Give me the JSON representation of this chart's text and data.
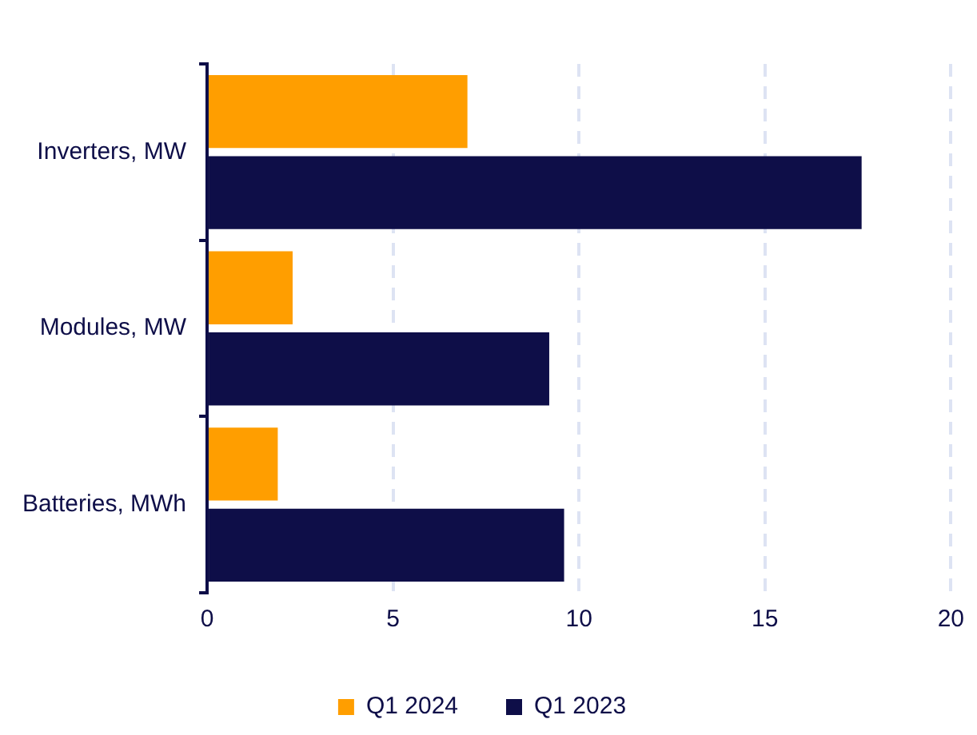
{
  "chart_data": {
    "type": "bar",
    "orientation": "horizontal",
    "categories": [
      "Inverters, MW",
      "Modules, MW",
      "Batteries, MWh"
    ],
    "series": [
      {
        "name": "Q1 2024",
        "color": "#ff9e00",
        "values": [
          7.0,
          2.3,
          1.9
        ]
      },
      {
        "name": "Q1 2023",
        "color": "#0e0e48",
        "values": [
          17.6,
          9.2,
          9.6
        ]
      }
    ],
    "xlim": [
      0,
      20
    ],
    "xticks": [
      0,
      5,
      10,
      15,
      20
    ],
    "grid": "x",
    "legend": "bottom"
  }
}
